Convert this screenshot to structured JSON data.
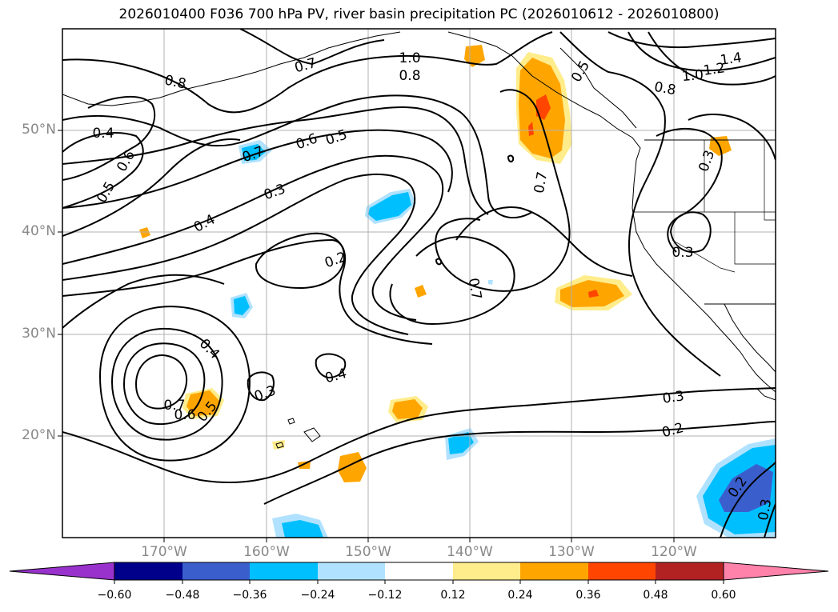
{
  "title": "2026010400 F036 700 hPa PV, river basin precipitation PC (2026010612 - 2026010800)",
  "map": {
    "projection": "equirectangular",
    "lon_range": [
      -180,
      -110
    ],
    "lat_range": [
      10,
      60
    ],
    "graticule": "on",
    "lat_labels": [
      "50°N",
      "40°N",
      "30°N",
      "20°N"
    ],
    "lon_labels": [
      "170°W",
      "160°W",
      "150°W",
      "140°W",
      "130°W",
      "120°W"
    ],
    "contour_labels": [
      "0.8",
      "0.7",
      "1.0",
      "0.8",
      "1.4",
      "1.2",
      "1.0",
      "0.8",
      "0.5",
      "0.4",
      "0.6",
      "0.5",
      "0.7",
      "0.6",
      "0.5",
      "0.3",
      "0.4",
      "0.2",
      "0.7",
      "0.7",
      "0.3",
      "0.3",
      "0.4",
      "0.4",
      "0.3",
      "0.7",
      "0.6",
      "0.5",
      "0.3",
      "0.2",
      "0.2",
      "0.3"
    ]
  },
  "colorbar": {
    "ticks": [
      "−0.60",
      "−0.48",
      "−0.36",
      "−0.24",
      "−0.12",
      "0.12",
      "0.24",
      "0.36",
      "0.48",
      "0.60"
    ],
    "colors": [
      "#9932cc",
      "#00008b",
      "#3a5fcd",
      "#00bfff",
      "#b0e2ff",
      "#ffffff",
      "#ffec8b",
      "#ffa500",
      "#ff4500",
      "#b22222",
      "#ff82ab"
    ]
  },
  "colors": {
    "contour": "#000000",
    "coastline": "#000000",
    "grid": "#b0b0b0",
    "axis_labels": "#888888"
  }
}
